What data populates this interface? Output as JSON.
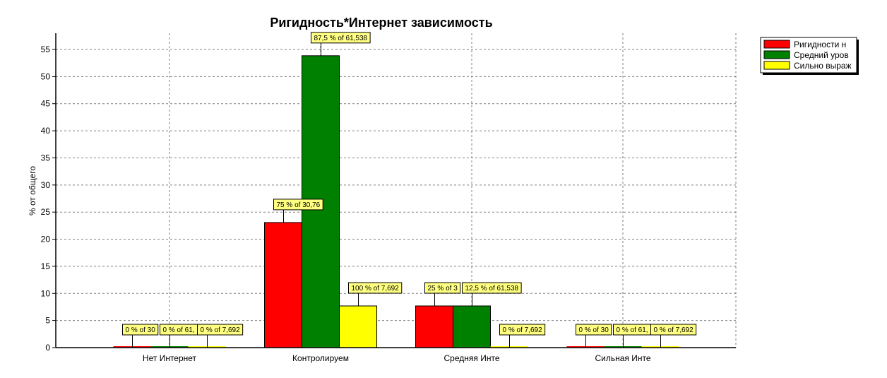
{
  "chart_data": {
    "type": "bar",
    "title": "Ригидность*Интернет зависимость",
    "xlabel": "",
    "ylabel": "% от общего",
    "ylim": [
      0,
      58
    ],
    "yticks": [
      0,
      5,
      10,
      15,
      20,
      25,
      30,
      35,
      40,
      45,
      50,
      55
    ],
    "grid": true,
    "legend_position": "top-right",
    "categories": [
      "Нет Интернет",
      "Контролируем",
      "Средняя Инте",
      "Сильная Инте"
    ],
    "series": [
      {
        "name": "Ригидности н",
        "color": "#ff0000",
        "values": [
          0,
          23.08,
          7.69,
          0
        ],
        "labels": [
          "0 % of 30",
          "75 % of 30,76",
          "25 % of 3",
          "0 % of 30"
        ]
      },
      {
        "name": "Средний уров",
        "color": "#008000",
        "values": [
          0,
          53.85,
          7.69,
          0
        ],
        "labels": [
          "0 % of 61,",
          "87,5 % of 61,538",
          "12,5 % of 61,538",
          "0 % of 61,"
        ]
      },
      {
        "name": "Сильно выраж",
        "color": "#ffff00",
        "values": [
          0,
          7.69,
          0,
          0
        ],
        "labels": [
          "0 % of 7,692",
          "100 % of 7,692",
          "0 % of 7,692",
          "0 % of 7,692"
        ]
      }
    ]
  }
}
